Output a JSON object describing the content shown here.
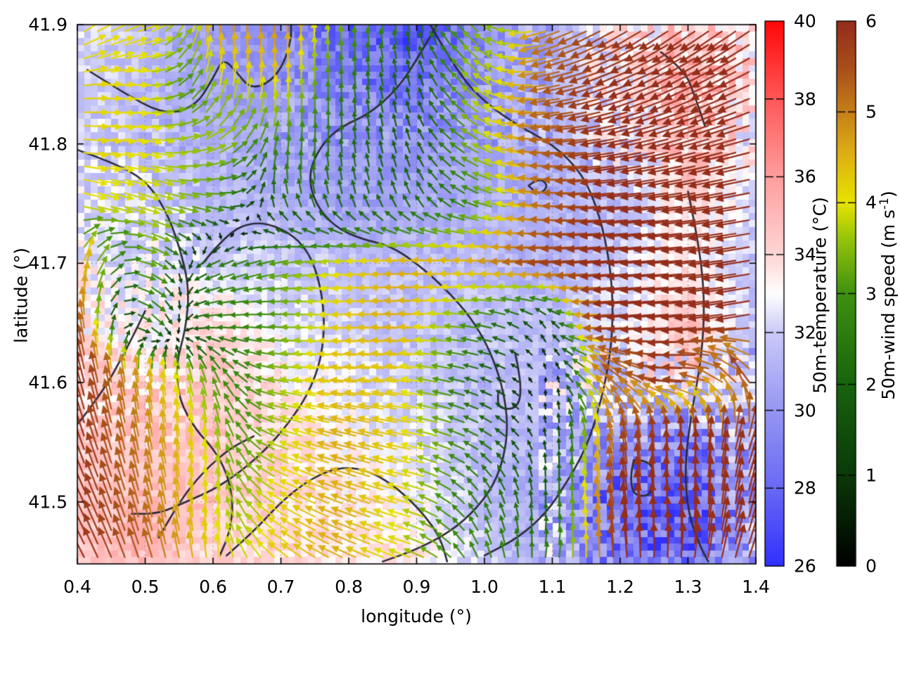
{
  "axes": {
    "x_label": "longitude (°)",
    "y_label": "latitude (°)",
    "x_range": [
      0.4,
      1.4
    ],
    "y_range": [
      41.448,
      41.9
    ],
    "x_ticks": [
      "0.4",
      "0.5",
      "0.6",
      "0.7",
      "0.8",
      "0.9",
      "1.0",
      "1.1",
      "1.2",
      "1.3",
      "1.4"
    ],
    "x_tick_values": [
      0.4,
      0.5,
      0.6,
      0.7,
      0.8,
      0.9,
      1.0,
      1.1,
      1.2,
      1.3,
      1.4
    ],
    "y_ticks": [
      "41.5",
      "41.6",
      "41.7",
      "41.8",
      "41.9"
    ],
    "y_tick_values": [
      41.5,
      41.6,
      41.7,
      41.8,
      41.9
    ],
    "grid": "dotted"
  },
  "colorbars": [
    {
      "id": "temperature",
      "label": "50m-temperature (°C)",
      "range": [
        26,
        40
      ],
      "tick_labels": [
        "26",
        "28",
        "30",
        "32",
        "34",
        "36",
        "38",
        "40"
      ],
      "tick_values": [
        26,
        28,
        30,
        32,
        34,
        36,
        38,
        40
      ],
      "palette_stops": [
        {
          "value": 26,
          "color": "#3030ff"
        },
        {
          "value": 28,
          "color": "#6969f5"
        },
        {
          "value": 30,
          "color": "#9696f3"
        },
        {
          "value": 32,
          "color": "#cacaf8"
        },
        {
          "value": 33,
          "color": "#ffffff"
        },
        {
          "value": 34,
          "color": "#ffd6d6"
        },
        {
          "value": 36,
          "color": "#ff9e9e"
        },
        {
          "value": 38,
          "color": "#ff5858"
        },
        {
          "value": 40,
          "color": "#ff0808"
        }
      ]
    },
    {
      "id": "wind-speed",
      "label_main": "50m-wind speed (m s",
      "label_sup": "-1",
      "label_close": ")",
      "range": [
        0,
        6
      ],
      "tick_labels": [
        "0",
        "1",
        "2",
        "3",
        "4",
        "5",
        "6"
      ],
      "tick_values": [
        0,
        1,
        2,
        3,
        4,
        5,
        6
      ],
      "palette_stops": [
        {
          "value": 0,
          "color": "#000000"
        },
        {
          "value": 1,
          "color": "#0a3a08"
        },
        {
          "value": 2,
          "color": "#18640e"
        },
        {
          "value": 3,
          "color": "#3e9110"
        },
        {
          "value": 3.6,
          "color": "#96c40a"
        },
        {
          "value": 4,
          "color": "#e8e400"
        },
        {
          "value": 4.6,
          "color": "#dcaa16"
        },
        {
          "value": 5,
          "color": "#c68018"
        },
        {
          "value": 5.5,
          "color": "#a84e1a"
        },
        {
          "value": 6,
          "color": "#942d1a"
        }
      ]
    }
  ],
  "chart_data": {
    "type": "heatmap+vector_field+contours",
    "title": "",
    "xlabel": "longitude (°)",
    "ylabel": "latitude (°)",
    "lon_nodes": [
      0.4,
      0.5,
      0.6,
      0.7,
      0.8,
      0.9,
      1.0,
      1.1,
      1.2,
      1.3,
      1.4
    ],
    "lat_nodes": [
      41.9,
      41.85,
      41.8,
      41.75,
      41.7,
      41.65,
      41.6,
      41.55,
      41.5,
      41.45
    ],
    "temperature_c": [
      [
        32.5,
        31.5,
        30.0,
        29.5,
        28.0,
        27.0,
        29.5,
        31.0,
        33.0,
        34.5,
        34.0
      ],
      [
        32.0,
        31.5,
        30.5,
        30.0,
        29.0,
        28.5,
        30.0,
        31.0,
        33.5,
        35.0,
        34.0
      ],
      [
        32.0,
        31.5,
        31.0,
        30.5,
        30.0,
        30.0,
        30.5,
        31.0,
        32.5,
        35.0,
        33.0
      ],
      [
        32.5,
        32.0,
        31.5,
        31.0,
        30.5,
        30.5,
        31.0,
        31.0,
        31.5,
        34.0,
        32.0
      ],
      [
        33.0,
        32.5,
        32.0,
        32.0,
        31.5,
        31.5,
        31.5,
        31.0,
        32.0,
        33.5,
        31.5
      ],
      [
        33.5,
        33.0,
        34.0,
        32.5,
        32.0,
        31.5,
        31.5,
        31.5,
        32.5,
        35.0,
        31.5
      ],
      [
        34.0,
        34.0,
        34.5,
        33.5,
        32.5,
        32.0,
        31.5,
        31.5,
        32.0,
        33.0,
        31.0
      ],
      [
        34.5,
        34.5,
        34.5,
        34.0,
        33.0,
        32.5,
        31.5,
        31.0,
        30.0,
        29.0,
        31.0
      ],
      [
        34.5,
        35.0,
        34.5,
        34.0,
        33.5,
        33.0,
        31.5,
        30.5,
        28.0,
        27.5,
        30.5
      ],
      [
        34.5,
        35.0,
        34.0,
        34.0,
        33.5,
        33.5,
        32.0,
        31.0,
        28.5,
        28.0,
        31.0
      ]
    ],
    "wind_speed_ms": [
      [
        4.2,
        4.2,
        5.0,
        5.2,
        3.4,
        2.4,
        3.4,
        5.0,
        5.8,
        6.0,
        6.0
      ],
      [
        4.2,
        4.0,
        4.0,
        4.4,
        2.6,
        1.8,
        3.8,
        5.2,
        6.0,
        6.0,
        6.0
      ],
      [
        4.2,
        4.0,
        3.8,
        3.2,
        2.2,
        1.8,
        3.6,
        5.2,
        6.0,
        6.0,
        6.0
      ],
      [
        4.0,
        3.8,
        3.2,
        2.4,
        2.2,
        2.2,
        3.0,
        5.0,
        6.0,
        6.0,
        6.0
      ],
      [
        5.0,
        3.6,
        2.6,
        3.2,
        4.0,
        4.6,
        4.5,
        5.6,
        6.0,
        6.0,
        6.0
      ],
      [
        5.8,
        3.2,
        2.6,
        3.0,
        4.2,
        4.6,
        3.0,
        1.5,
        6.0,
        6.0,
        6.0
      ],
      [
        6.0,
        4.6,
        3.2,
        3.4,
        4.4,
        4.2,
        2.0,
        0.5,
        5.5,
        6.0,
        6.0
      ],
      [
        6.0,
        5.0,
        3.8,
        3.6,
        4.6,
        4.2,
        2.6,
        1.2,
        5.5,
        6.0,
        6.0
      ],
      [
        6.0,
        5.2,
        4.0,
        4.0,
        4.6,
        4.0,
        2.6,
        2.0,
        6.0,
        6.0,
        6.0
      ],
      [
        6.0,
        5.4,
        4.2,
        4.2,
        4.6,
        3.8,
        3.0,
        2.6,
        6.0,
        6.0,
        6.0
      ]
    ],
    "wind_dir_deg_ccw_from_east": [
      [
        35,
        20,
        90,
        92,
        95,
        100,
        140,
        200,
        210,
        215,
        215
      ],
      [
        5,
        0,
        80,
        88,
        95,
        105,
        140,
        190,
        200,
        205,
        205
      ],
      [
        -5,
        -10,
        30,
        82,
        95,
        110,
        150,
        180,
        190,
        195,
        195
      ],
      [
        -15,
        -18,
        -10,
        105,
        105,
        115,
        160,
        175,
        185,
        188,
        190
      ],
      [
        75,
        -25,
        205,
        195,
        185,
        180,
        180,
        185,
        185,
        185,
        190
      ],
      [
        100,
        -40,
        185,
        175,
        180,
        178,
        170,
        120,
        185,
        185,
        190
      ],
      [
        105,
        95,
        110,
        170,
        175,
        172,
        160,
        60,
        140,
        180,
        120
      ],
      [
        110,
        100,
        95,
        160,
        165,
        168,
        150,
        90,
        100,
        90,
        70
      ],
      [
        115,
        105,
        92,
        150,
        160,
        165,
        120,
        85,
        100,
        90,
        75
      ],
      [
        118,
        108,
        95,
        140,
        155,
        160,
        110,
        80,
        95,
        85,
        70
      ]
    ],
    "contour_lines_lonlat": [
      [
        [
          0.415,
          41.862
        ],
        [
          0.47,
          41.842
        ],
        [
          0.53,
          41.824
        ],
        [
          0.575,
          41.832
        ],
        [
          0.6,
          41.855
        ],
        [
          0.615,
          41.872
        ],
        [
          0.635,
          41.86
        ],
        [
          0.655,
          41.846
        ],
        [
          0.685,
          41.852
        ],
        [
          0.705,
          41.868
        ],
        [
          0.715,
          41.888
        ],
        [
          0.715,
          41.9
        ]
      ],
      [
        [
          0.4,
          41.795
        ],
        [
          0.45,
          41.785
        ],
        [
          0.5,
          41.77
        ],
        [
          0.53,
          41.745
        ],
        [
          0.55,
          41.715
        ],
        [
          0.565,
          41.68
        ],
        [
          0.56,
          41.645
        ],
        [
          0.545,
          41.615
        ],
        [
          0.55,
          41.585
        ],
        [
          0.575,
          41.56
        ],
        [
          0.6,
          41.545
        ],
        [
          0.62,
          41.525
        ],
        [
          0.63,
          41.5
        ],
        [
          0.625,
          41.475
        ],
        [
          0.61,
          41.455
        ]
      ],
      [
        [
          0.585,
          41.7
        ],
        [
          0.62,
          41.725
        ],
        [
          0.66,
          41.735
        ],
        [
          0.7,
          41.73
        ],
        [
          0.735,
          41.715
        ],
        [
          0.755,
          41.69
        ],
        [
          0.765,
          41.655
        ],
        [
          0.76,
          41.62
        ],
        [
          0.74,
          41.59
        ],
        [
          0.71,
          41.565
        ],
        [
          0.68,
          41.545
        ],
        [
          0.64,
          41.525
        ],
        [
          0.6,
          41.51
        ],
        [
          0.56,
          41.5
        ],
        [
          0.52,
          41.49
        ],
        [
          0.48,
          41.49
        ]
      ],
      [
        [
          0.93,
          41.9
        ],
        [
          0.9,
          41.87
        ],
        [
          0.87,
          41.845
        ],
        [
          0.83,
          41.825
        ],
        [
          0.79,
          41.815
        ],
        [
          0.76,
          41.8
        ],
        [
          0.74,
          41.775
        ],
        [
          0.75,
          41.75
        ],
        [
          0.78,
          41.73
        ],
        [
          0.82,
          41.72
        ],
        [
          0.86,
          41.715
        ],
        [
          0.9,
          41.7
        ],
        [
          0.94,
          41.68
        ],
        [
          0.98,
          41.655
        ],
        [
          1.01,
          41.625
        ],
        [
          1.03,
          41.59
        ],
        [
          1.035,
          41.555
        ],
        [
          1.02,
          41.52
        ],
        [
          0.99,
          41.495
        ],
        [
          0.95,
          41.475
        ],
        [
          0.9,
          41.46
        ],
        [
          0.85,
          41.45
        ]
      ],
      [
        [
          0.92,
          41.9
        ],
        [
          0.96,
          41.86
        ],
        [
          1.0,
          41.835
        ],
        [
          1.05,
          41.815
        ],
        [
          1.1,
          41.8
        ],
        [
          1.145,
          41.775
        ],
        [
          1.17,
          41.74
        ],
        [
          1.185,
          41.7
        ],
        [
          1.19,
          41.66
        ],
        [
          1.185,
          41.62
        ],
        [
          1.17,
          41.58
        ],
        [
          1.15,
          41.545
        ],
        [
          1.12,
          41.515
        ],
        [
          1.09,
          41.49
        ],
        [
          1.05,
          41.47
        ],
        [
          1.0,
          41.455
        ]
      ],
      [
        [
          1.3,
          41.76
        ],
        [
          1.315,
          41.72
        ],
        [
          1.325,
          41.67
        ],
        [
          1.32,
          41.62
        ],
        [
          1.305,
          41.575
        ],
        [
          1.295,
          41.53
        ],
        [
          1.3,
          41.49
        ],
        [
          1.32,
          41.46
        ],
        [
          1.33,
          41.45
        ]
      ],
      [
        [
          1.26,
          41.877
        ],
        [
          1.295,
          41.862
        ],
        [
          1.31,
          41.84
        ],
        [
          1.325,
          41.815
        ]
      ],
      [
        [
          0.62,
          41.455
        ],
        [
          0.66,
          41.475
        ],
        [
          0.7,
          41.5
        ],
        [
          0.745,
          41.52
        ],
        [
          0.79,
          41.53
        ],
        [
          0.835,
          41.525
        ],
        [
          0.875,
          41.51
        ],
        [
          0.91,
          41.49
        ],
        [
          0.935,
          41.47
        ],
        [
          0.945,
          41.45
        ]
      ],
      [
        [
          0.4,
          41.565
        ],
        [
          0.435,
          41.59
        ],
        [
          0.47,
          41.625
        ],
        [
          0.5,
          41.66
        ]
      ],
      [
        [
          0.52,
          41.47
        ],
        [
          0.55,
          41.5
        ],
        [
          0.585,
          41.525
        ],
        [
          0.625,
          41.545
        ],
        [
          0.66,
          41.555
        ]
      ],
      [
        [
          1.065,
          41.765
        ],
        [
          1.08,
          41.772
        ],
        [
          1.095,
          41.765
        ],
        [
          1.08,
          41.757
        ],
        [
          1.065,
          41.765
        ]
      ],
      [
        [
          1.22,
          41.535
        ],
        [
          1.245,
          41.535
        ],
        [
          1.25,
          41.52
        ],
        [
          1.245,
          41.505
        ],
        [
          1.22,
          41.505
        ],
        [
          1.215,
          41.52
        ],
        [
          1.22,
          41.535
        ]
      ],
      [
        [
          1.045,
          41.625
        ],
        [
          1.055,
          41.6
        ],
        [
          1.05,
          41.578
        ],
        [
          1.02,
          41.578
        ],
        [
          1.02,
          41.59
        ]
      ]
    ],
    "arrow_grid": {
      "cols": 50,
      "rows": 40
    },
    "heatmap_cells": {
      "cols": 100,
      "rows": 80
    }
  }
}
